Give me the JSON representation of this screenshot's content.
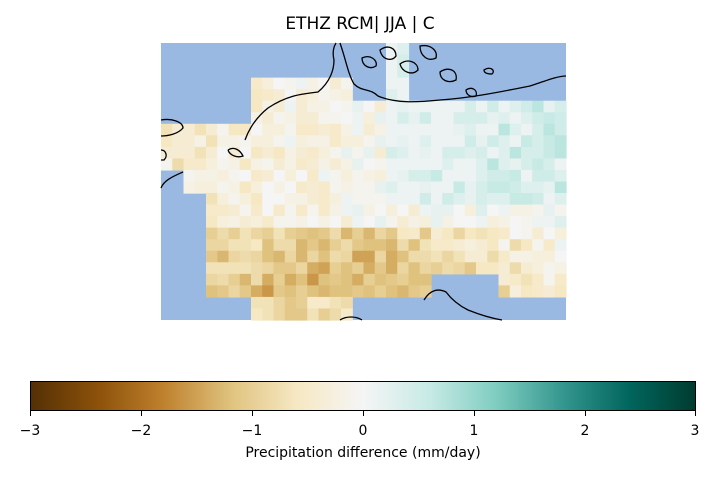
{
  "title": "ETHZ RCM| JJA | C",
  "colorbar": {
    "label": "Precipitation difference (mm/day)",
    "ticks": [
      "−3",
      "−2",
      "−1",
      "0",
      "1",
      "2",
      "3"
    ],
    "range": [
      -3,
      3
    ],
    "colormap": "BrBG",
    "colors": [
      "#543005",
      "#8c510a",
      "#bf812d",
      "#dfc27d",
      "#f6e8c3",
      "#f5f5f5",
      "#c7eae5",
      "#80cdc1",
      "#35978f",
      "#01665e",
      "#003c30"
    ]
  },
  "colors": {
    "sea": "#99b9e3",
    "coast": "#000000"
  },
  "grid": {
    "rows": 24,
    "cols": 36,
    "comment_units": "precipitation difference, mm/day; null = no data",
    "values": []
  }
}
